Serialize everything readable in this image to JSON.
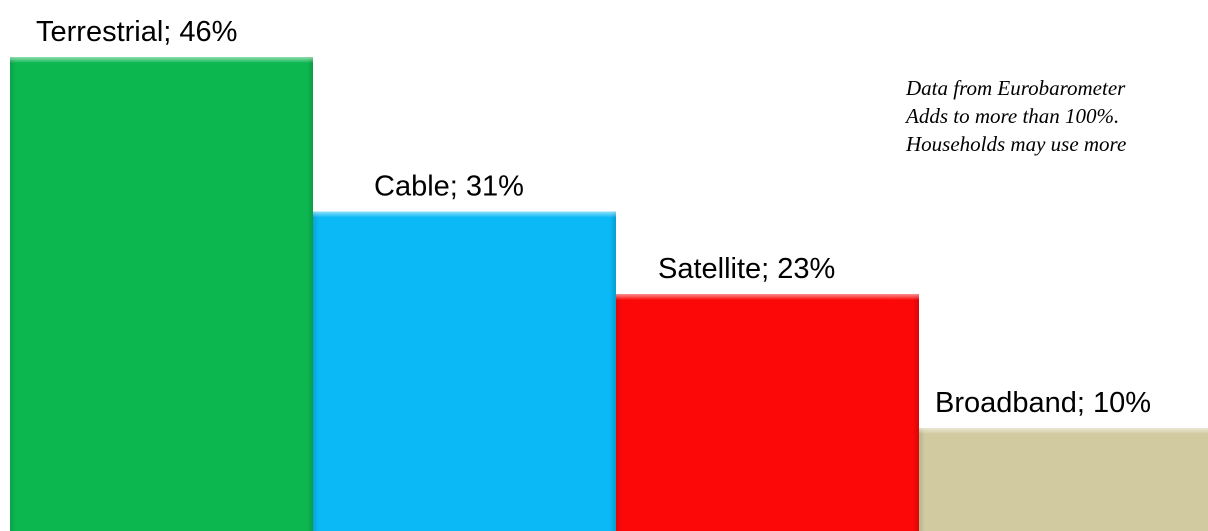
{
  "chart_data": {
    "type": "bar",
    "categories": [
      "Terrestrial",
      "Cable",
      "Satellite",
      "Broadband"
    ],
    "values": [
      46,
      31,
      23,
      10
    ],
    "data_labels": [
      "Terrestrial; 46%",
      "Cable; 31%",
      "Satellite; 23%",
      "Broadband; 10%"
    ],
    "colors": [
      "#0cb750",
      "#0ab9f5",
      "#fc0808",
      "#d1caa1"
    ],
    "ylim": [
      0,
      46
    ],
    "grid": false,
    "legend": "none",
    "title": "",
    "xlabel": "",
    "ylabel": ""
  },
  "note": {
    "lines": [
      "Data from Eurobarometer",
      "Adds to more than 100%.",
      "Households may use more"
    ]
  }
}
